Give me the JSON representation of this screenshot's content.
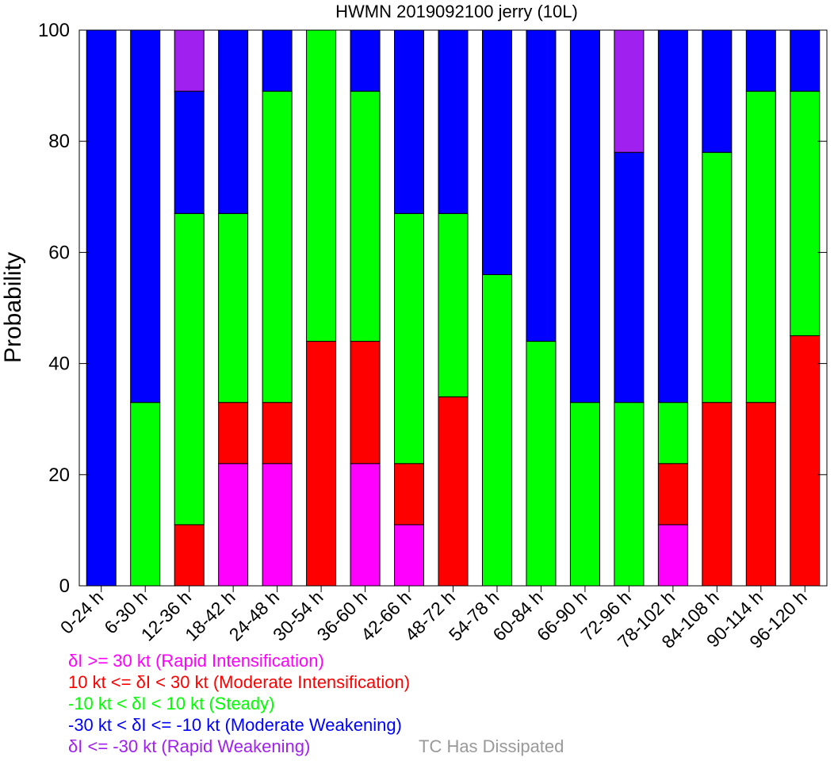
{
  "chart_data": {
    "type": "bar",
    "stacked": true,
    "title": "HWMN 2019092100 jerry (10L)",
    "ylabel": "Probability",
    "xlabel": "",
    "ylim": [
      0,
      100
    ],
    "yticks": [
      0,
      20,
      40,
      60,
      80,
      100
    ],
    "grid": false,
    "legend_position": "bottom-left",
    "categories": [
      "0-24 h",
      "6-30 h",
      "12-36 h",
      "18-42 h",
      "24-48 h",
      "30-54 h",
      "36-60 h",
      "42-66 h",
      "48-72 h",
      "54-78 h",
      "60-84 h",
      "66-90 h",
      "72-96 h",
      "78-102 h",
      "84-108 h",
      "90-114 h",
      "96-120 h"
    ],
    "series": [
      {
        "key": "ri",
        "name": "δI >= 30 kt (Rapid Intensification)",
        "color": "#ff00ff",
        "values": [
          0,
          0,
          0,
          22,
          22,
          0,
          22,
          11,
          0,
          0,
          0,
          0,
          0,
          11,
          0,
          0,
          0
        ]
      },
      {
        "key": "mi",
        "name": "10 kt <= δI < 30 kt (Moderate Intensification)",
        "color": "#ff0000",
        "values": [
          0,
          0,
          11,
          11,
          11,
          44,
          22,
          11,
          34,
          0,
          0,
          0,
          0,
          11,
          33,
          33,
          45
        ]
      },
      {
        "key": "st",
        "name": "-10 kt < δI < 10 kt (Steady)",
        "color": "#00ff00",
        "values": [
          0,
          33,
          56,
          34,
          56,
          56,
          45,
          45,
          33,
          56,
          44,
          33,
          33,
          11,
          45,
          56,
          44
        ]
      },
      {
        "key": "mw",
        "name": "-30 kt < δI <= -10 kt (Moderate Weakening)",
        "color": "#0000ff",
        "values": [
          100,
          67,
          22,
          33,
          11,
          0,
          11,
          33,
          33,
          44,
          56,
          67,
          45,
          67,
          22,
          11,
          11
        ]
      },
      {
        "key": "rw",
        "name": "δI <= -30 kt (Rapid Weakening)",
        "color": "#a020f0",
        "values": [
          0,
          0,
          11,
          0,
          0,
          0,
          0,
          0,
          0,
          0,
          0,
          0,
          22,
          0,
          0,
          0,
          0
        ]
      }
    ],
    "extra_legend": {
      "name": "TC Has Dissipated",
      "color": "#999999"
    }
  }
}
